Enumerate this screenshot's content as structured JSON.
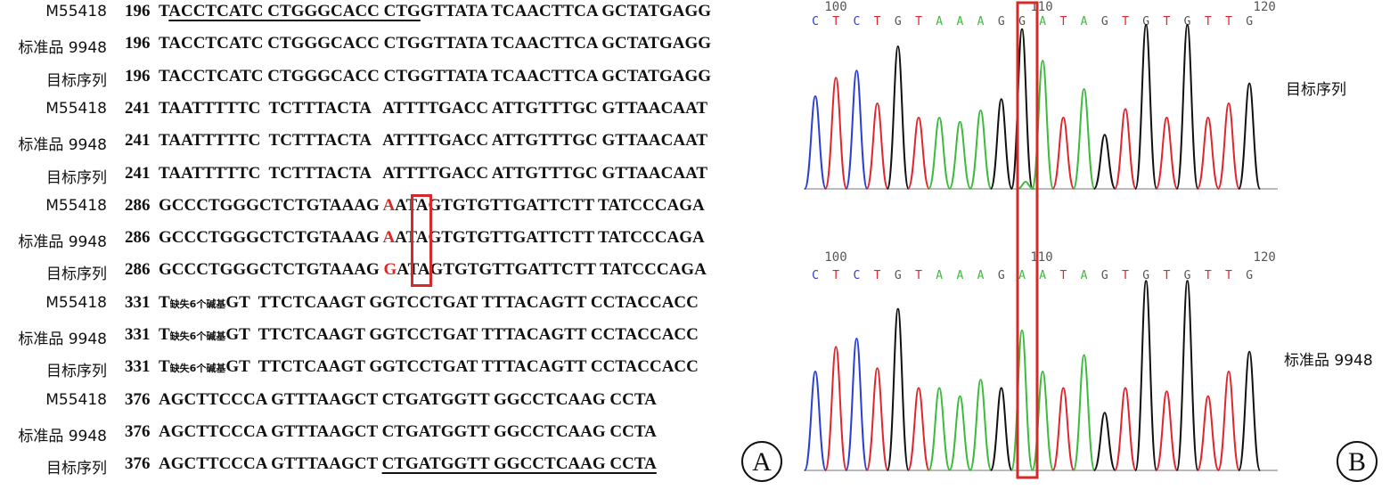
{
  "panelA": {
    "rows": [
      {
        "label": "M55418",
        "pos": "196",
        "parts": [
          {
            "t": "T"
          },
          {
            "t": "ACCTCATC CTGGGCACC CTG",
            "ul": true
          },
          {
            "t": "GTTATA TCAACTTCA GCTATGAGG"
          }
        ]
      },
      {
        "label": "标准品 9948",
        "pos": "196",
        "parts": [
          {
            "t": "TACCTCATC CTGGGCACC CTGGTTATA TCAACTTCA GCTATGAGG"
          }
        ]
      },
      {
        "label": "目标序列",
        "pos": "196",
        "parts": [
          {
            "t": "TACCTCATC CTGGGCACC CTGGTTATA TCAACTTCA GCTATGAGG"
          }
        ]
      },
      {
        "label": "M55418",
        "pos": "241",
        "parts": [
          {
            "t": "TAATTTTTC  TCTTTACTA   ATTTTGACC ATTGTTTGC GTTAACAAT"
          }
        ]
      },
      {
        "label": "标准品 9948",
        "pos": "241",
        "parts": [
          {
            "t": "TAATTTTTC  TCTTTACTA   ATTTTGACC ATTGTTTGC GTTAACAAT"
          }
        ]
      },
      {
        "label": "目标序列",
        "pos": "241",
        "parts": [
          {
            "t": "TAATTTTTC  TCTTTACTA   ATTTTGACC ATTGTTTGC GTTAACAAT"
          }
        ]
      },
      {
        "label": "M55418",
        "pos": "286",
        "parts": [
          {
            "t": "GCCCTGGGCTCTGTAAAG "
          },
          {
            "t": "A",
            "red": true
          },
          {
            "t": "ATAGTGTGTTGATTCTT TATCCCAGA"
          }
        ]
      },
      {
        "label": "标准品 9948",
        "pos": "286",
        "parts": [
          {
            "t": "GCCCTGGGCTCTGTAAAG "
          },
          {
            "t": "A",
            "red": true
          },
          {
            "t": "ATAGTGTGTTGATTCTT TATCCCAGA"
          }
        ]
      },
      {
        "label": "目标序列",
        "pos": "286",
        "parts": [
          {
            "t": "GCCCTGGGCTCTGTAAAG "
          },
          {
            "t": "G",
            "red": true
          },
          {
            "t": "ATAGTGTGTTGATTCTT TATCCCAGA"
          }
        ]
      },
      {
        "label": "M55418",
        "pos": "331",
        "parts": [
          {
            "t": "T"
          },
          {
            "t": "缺失6个碱基",
            "small": true
          },
          {
            "t": "GT  TTCTCAAGT GGTCCTGAT TTTACAGTT CCTACCACC"
          }
        ]
      },
      {
        "label": "标准品 9948",
        "pos": "331",
        "parts": [
          {
            "t": "T"
          },
          {
            "t": "缺失6个碱基",
            "small": true
          },
          {
            "t": "GT  TTCTCAAGT GGTCCTGAT TTTACAGTT CCTACCACC"
          }
        ]
      },
      {
        "label": "目标序列",
        "pos": "331",
        "parts": [
          {
            "t": "T"
          },
          {
            "t": "缺失6个碱基",
            "small": true
          },
          {
            "t": "GT  TTCTCAAGT GGTCCTGAT TTTACAGTT CCTACCACC"
          }
        ]
      },
      {
        "label": "M55418",
        "pos": "376",
        "parts": [
          {
            "t": "AGCTTCCCA GTTTAAGCT CTGATGGTT GGCCTCAAG CCTA"
          }
        ]
      },
      {
        "label": "标准品 9948",
        "pos": "376",
        "parts": [
          {
            "t": "AGCTTCCCA GTTTAAGCT CTGATGGTT GGCCTCAAG CCTA"
          }
        ]
      },
      {
        "label": "目标序列",
        "pos": "376",
        "parts": [
          {
            "t": "AGCTTCCCA GTTTAAGCT "
          },
          {
            "t": "CTGATGGTT GGCCTCAAG CCTA",
            "ul": true
          }
        ]
      }
    ],
    "panel_letter": "A"
  },
  "panelB": {
    "panel_letter": "B",
    "traces": [
      {
        "label": "目标序列",
        "ticks": [
          "100",
          "110",
          "120"
        ],
        "bases": [
          "C",
          "T",
          "C",
          "T",
          "G",
          "T",
          "A",
          "A",
          "A",
          "G",
          "G",
          "A",
          "T",
          "A",
          "G",
          "T",
          "G",
          "T",
          "G",
          "T",
          "T",
          "G"
        ],
        "peaks": [
          0.65,
          0.78,
          0.83,
          0.6,
          1.0,
          0.5,
          0.5,
          0.47,
          0.55,
          0.63,
          1.12,
          0.9,
          0.5,
          0.7,
          0.38,
          0.56,
          1.15,
          0.5,
          1.15,
          0.5,
          0.6,
          0.74
        ]
      },
      {
        "label": "标准品 9948",
        "ticks": [
          "100",
          "110",
          "120"
        ],
        "bases": [
          "C",
          "T",
          "C",
          "T",
          "G",
          "T",
          "A",
          "A",
          "A",
          "G",
          "A",
          "A",
          "T",
          "A",
          "G",
          "T",
          "G",
          "T",
          "G",
          "T",
          "T",
          "G"
        ],
        "peaks": [
          0.6,
          0.75,
          0.8,
          0.62,
          0.98,
          0.5,
          0.5,
          0.45,
          0.55,
          0.5,
          0.85,
          0.6,
          0.5,
          0.7,
          0.35,
          0.5,
          1.15,
          0.48,
          1.15,
          0.45,
          0.6,
          0.72
        ]
      }
    ],
    "colors": {
      "A": "#3dbb3d",
      "C": "#2b3fd0",
      "G": "#111111",
      "T": "#e0262e"
    }
  }
}
